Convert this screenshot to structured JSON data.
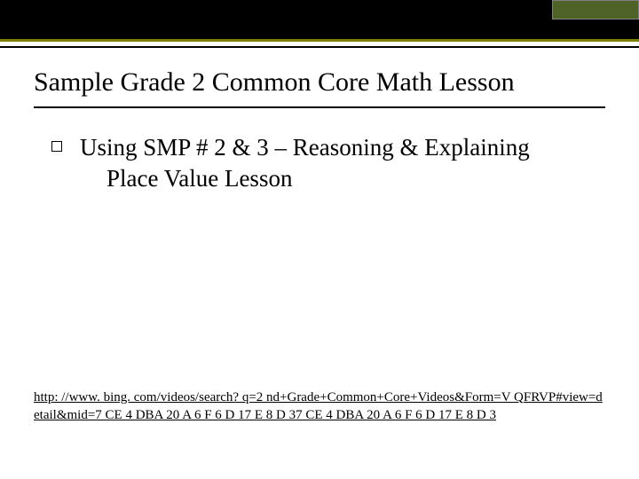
{
  "header": {
    "dark_bg": "#000000",
    "green_block_bg": "#4f6228",
    "olive_rule": "#808000"
  },
  "title": "Sample Grade 2 Common Core Math Lesson",
  "bullet": {
    "line1": "Using SMP # 2 & 3 – Reasoning & Explaining",
    "sub": "Place Value Lesson"
  },
  "link": {
    "text": "http: //www. bing. com/videos/search? q=2 nd+Grade+Common+Core+Videos&Form=V QFRVP#view=detail&mid=7 CE 4 DBA 20 A 6 F 6 D 17 E 8 D 37 CE 4 DBA 20 A 6 F 6 D 17 E 8 D 3"
  }
}
